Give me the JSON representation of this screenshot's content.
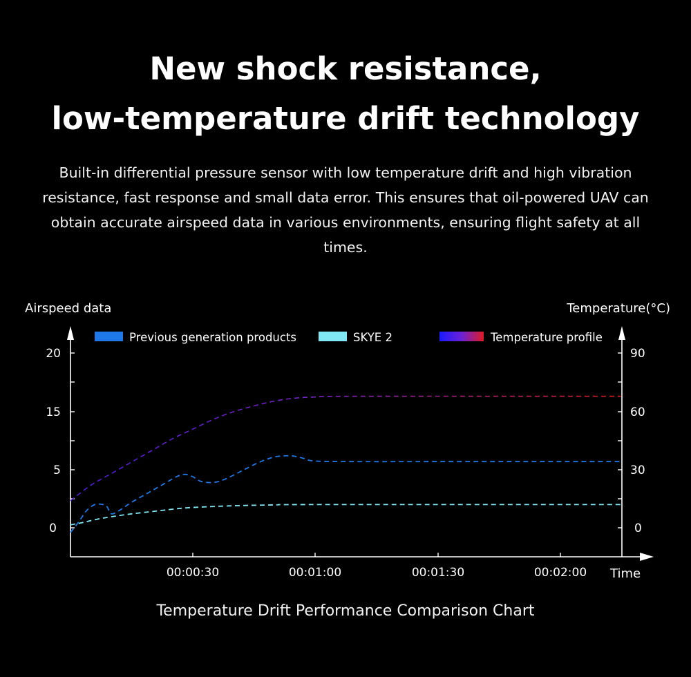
{
  "header": {
    "title_line1": "New shock resistance,",
    "title_line2": "low-temperature drift technology",
    "description": "Built-in differential pressure sensor with low temperature drift and high vibration resistance, fast response and small data error. This ensures that oil-powered UAV can obtain accurate airspeed data in various environments, ensuring flight safety at all times."
  },
  "chart_data": {
    "type": "line",
    "caption": "Temperature Drift Performance Comparison Chart",
    "ylabel": "Airspeed data",
    "y2label": "Temperature(°C)",
    "xlabel": "Time",
    "x_ticks": [
      "00:00:30",
      "00:01:00",
      "00:01:30",
      "00:02:00"
    ],
    "y_tick_labels": [
      "0",
      "5",
      "15",
      "20"
    ],
    "y2_tick_labels": [
      "0",
      "30",
      "60",
      "90"
    ],
    "legend_position": "top",
    "grid": false,
    "series": [
      {
        "name": "Previous generation products",
        "color": "#1f78e8",
        "line_style": "dashed",
        "axis": "left",
        "points": [
          [
            0,
            -0.4
          ],
          [
            2,
            0.5
          ],
          [
            4,
            1.5
          ],
          [
            6,
            2.0
          ],
          [
            8,
            2.0
          ],
          [
            9,
            1.8
          ],
          [
            10,
            1.2
          ],
          [
            12,
            1.5
          ],
          [
            15,
            2.2
          ],
          [
            19,
            3.0
          ],
          [
            23,
            3.8
          ],
          [
            26,
            4.4
          ],
          [
            28,
            4.6
          ],
          [
            30,
            4.4
          ],
          [
            32,
            4.0
          ],
          [
            35,
            3.9
          ],
          [
            38,
            4.2
          ],
          [
            42,
            4.9
          ],
          [
            46,
            5.6
          ],
          [
            50,
            6.1
          ],
          [
            54,
            6.2
          ],
          [
            57,
            6.0
          ],
          [
            60,
            5.75
          ],
          [
            70,
            5.7
          ],
          [
            90,
            5.7
          ],
          [
            120,
            5.7
          ],
          [
            135,
            5.7
          ]
        ]
      },
      {
        "name": "SKYE 2",
        "color": "#7fe8f4",
        "line_style": "dashed",
        "axis": "left",
        "points": [
          [
            0,
            0.25
          ],
          [
            3,
            0.45
          ],
          [
            6,
            0.7
          ],
          [
            10,
            0.95
          ],
          [
            15,
            1.2
          ],
          [
            20,
            1.4
          ],
          [
            25,
            1.6
          ],
          [
            30,
            1.75
          ],
          [
            40,
            1.9
          ],
          [
            50,
            1.97
          ],
          [
            60,
            2.0
          ],
          [
            135,
            2.0
          ]
        ]
      },
      {
        "name": "Temperature profile",
        "color_start": "#1a1aff",
        "color_end": "#e01b24",
        "line_style": "dashed",
        "axis": "right",
        "points": [
          [
            0,
            14
          ],
          [
            5,
            22
          ],
          [
            10,
            28
          ],
          [
            15,
            34
          ],
          [
            20,
            40
          ],
          [
            25,
            46
          ],
          [
            30,
            51
          ],
          [
            35,
            56
          ],
          [
            40,
            60
          ],
          [
            45,
            63
          ],
          [
            50,
            65.5
          ],
          [
            55,
            67
          ],
          [
            60,
            67.6
          ],
          [
            70,
            68
          ],
          [
            135,
            68
          ]
        ]
      }
    ]
  }
}
